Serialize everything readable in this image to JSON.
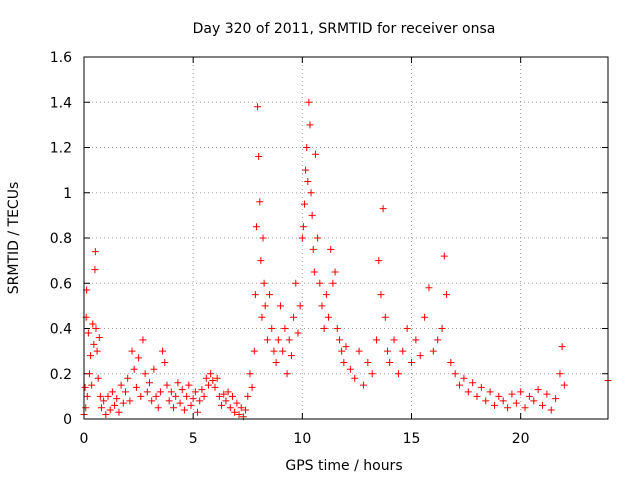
{
  "chart_data": {
    "type": "scatter",
    "title": "Day 320 of 2011, SRMTID for receiver onsa",
    "xlabel": "GPS time / hours",
    "ylabel": "SRMTID / TECUs",
    "xlim": [
      0,
      24
    ],
    "ylim": [
      0,
      1.6
    ],
    "xticks": [
      0,
      5,
      10,
      15,
      20
    ],
    "xtick_labels": [
      "0",
      "5",
      "10",
      "15",
      "20"
    ],
    "yticks": [
      0,
      0.2,
      0.4,
      0.6,
      0.8,
      1,
      1.2,
      1.4,
      1.6
    ],
    "ytick_labels": [
      "0",
      "0.2",
      "0.4",
      "0.6",
      "0.8",
      "1",
      "1.2",
      "1.4",
      "1.6"
    ],
    "grid": true,
    "marker": "plus",
    "color": "#ff0000",
    "series": [
      {
        "name": "SRMTID",
        "points": [
          [
            0.0,
            0.02
          ],
          [
            0.05,
            0.14
          ],
          [
            0.08,
            0.05
          ],
          [
            0.1,
            0.45
          ],
          [
            0.12,
            0.57
          ],
          [
            0.15,
            0.1
          ],
          [
            0.2,
            0.38
          ],
          [
            0.25,
            0.2
          ],
          [
            0.3,
            0.28
          ],
          [
            0.35,
            0.15
          ],
          [
            0.4,
            0.42
          ],
          [
            0.45,
            0.33
          ],
          [
            0.5,
            0.66
          ],
          [
            0.52,
            0.74
          ],
          [
            0.55,
            0.4
          ],
          [
            0.6,
            0.3
          ],
          [
            0.65,
            0.18
          ],
          [
            0.7,
            0.36
          ],
          [
            0.75,
            0.1
          ],
          [
            0.8,
            0.05
          ],
          [
            0.9,
            0.08
          ],
          [
            1.0,
            0.02
          ],
          [
            1.1,
            0.1
          ],
          [
            1.2,
            0.04
          ],
          [
            1.3,
            0.12
          ],
          [
            1.4,
            0.06
          ],
          [
            1.5,
            0.09
          ],
          [
            1.6,
            0.03
          ],
          [
            1.7,
            0.15
          ],
          [
            1.8,
            0.07
          ],
          [
            1.9,
            0.12
          ],
          [
            2.0,
            0.18
          ],
          [
            2.1,
            0.08
          ],
          [
            2.2,
            0.3
          ],
          [
            2.3,
            0.22
          ],
          [
            2.4,
            0.14
          ],
          [
            2.5,
            0.27
          ],
          [
            2.6,
            0.1
          ],
          [
            2.7,
            0.35
          ],
          [
            2.8,
            0.2
          ],
          [
            2.9,
            0.12
          ],
          [
            3.0,
            0.16
          ],
          [
            3.1,
            0.08
          ],
          [
            3.2,
            0.22
          ],
          [
            3.3,
            0.1
          ],
          [
            3.4,
            0.05
          ],
          [
            3.5,
            0.12
          ],
          [
            3.6,
            0.3
          ],
          [
            3.7,
            0.25
          ],
          [
            3.8,
            0.15
          ],
          [
            3.9,
            0.08
          ],
          [
            4.0,
            0.12
          ],
          [
            4.1,
            0.05
          ],
          [
            4.2,
            0.1
          ],
          [
            4.3,
            0.16
          ],
          [
            4.4,
            0.07
          ],
          [
            4.5,
            0.13
          ],
          [
            4.6,
            0.04
          ],
          [
            4.7,
            0.1
          ],
          [
            4.8,
            0.15
          ],
          [
            4.9,
            0.06
          ],
          [
            5.0,
            0.09
          ],
          [
            5.1,
            0.12
          ],
          [
            5.2,
            0.03
          ],
          [
            5.3,
            0.08
          ],
          [
            5.4,
            0.13
          ],
          [
            5.5,
            0.1
          ],
          [
            5.6,
            0.18
          ],
          [
            5.7,
            0.15
          ],
          [
            5.8,
            0.2
          ],
          [
            5.9,
            0.17
          ],
          [
            6.0,
            0.14
          ],
          [
            6.1,
            0.18
          ],
          [
            6.2,
            0.1
          ],
          [
            6.3,
            0.06
          ],
          [
            6.4,
            0.11
          ],
          [
            6.5,
            0.08
          ],
          [
            6.6,
            0.12
          ],
          [
            6.7,
            0.05
          ],
          [
            6.8,
            0.1
          ],
          [
            6.9,
            0.03
          ],
          [
            7.0,
            0.07
          ],
          [
            7.1,
            0.02
          ],
          [
            7.2,
            0.05
          ],
          [
            7.3,
            0.01
          ],
          [
            7.4,
            0.04
          ],
          [
            7.5,
            0.1
          ],
          [
            7.6,
            0.2
          ],
          [
            7.7,
            0.14
          ],
          [
            7.8,
            0.3
          ],
          [
            7.85,
            0.55
          ],
          [
            7.9,
            0.85
          ],
          [
            7.95,
            1.38
          ],
          [
            8.0,
            1.16
          ],
          [
            8.05,
            0.96
          ],
          [
            8.1,
            0.7
          ],
          [
            8.15,
            0.45
          ],
          [
            8.2,
            0.8
          ],
          [
            8.25,
            0.6
          ],
          [
            8.3,
            0.5
          ],
          [
            8.4,
            0.35
          ],
          [
            8.5,
            0.55
          ],
          [
            8.6,
            0.4
          ],
          [
            8.7,
            0.3
          ],
          [
            8.8,
            0.25
          ],
          [
            8.9,
            0.35
          ],
          [
            9.0,
            0.5
          ],
          [
            9.1,
            0.3
          ],
          [
            9.2,
            0.4
          ],
          [
            9.3,
            0.2
          ],
          [
            9.4,
            0.35
          ],
          [
            9.5,
            0.28
          ],
          [
            9.6,
            0.45
          ],
          [
            9.7,
            0.6
          ],
          [
            9.8,
            0.38
          ],
          [
            9.9,
            0.5
          ],
          [
            10.0,
            0.8
          ],
          [
            10.05,
            0.85
          ],
          [
            10.1,
            0.95
          ],
          [
            10.15,
            1.1
          ],
          [
            10.2,
            1.2
          ],
          [
            10.25,
            1.05
          ],
          [
            10.3,
            1.4
          ],
          [
            10.35,
            1.3
          ],
          [
            10.4,
            1.0
          ],
          [
            10.45,
            0.9
          ],
          [
            10.5,
            0.75
          ],
          [
            10.55,
            0.65
          ],
          [
            10.6,
            1.17
          ],
          [
            10.7,
            0.8
          ],
          [
            10.8,
            0.6
          ],
          [
            10.9,
            0.5
          ],
          [
            11.0,
            0.4
          ],
          [
            11.1,
            0.55
          ],
          [
            11.2,
            0.45
          ],
          [
            11.3,
            0.75
          ],
          [
            11.4,
            0.6
          ],
          [
            11.5,
            0.65
          ],
          [
            11.6,
            0.4
          ],
          [
            11.7,
            0.35
          ],
          [
            11.8,
            0.3
          ],
          [
            11.9,
            0.25
          ],
          [
            12.0,
            0.32
          ],
          [
            12.2,
            0.22
          ],
          [
            12.4,
            0.18
          ],
          [
            12.6,
            0.3
          ],
          [
            12.8,
            0.15
          ],
          [
            13.0,
            0.25
          ],
          [
            13.2,
            0.2
          ],
          [
            13.4,
            0.35
          ],
          [
            13.5,
            0.7
          ],
          [
            13.6,
            0.55
          ],
          [
            13.7,
            0.93
          ],
          [
            13.8,
            0.45
          ],
          [
            13.9,
            0.3
          ],
          [
            14.0,
            0.25
          ],
          [
            14.2,
            0.35
          ],
          [
            14.4,
            0.2
          ],
          [
            14.6,
            0.3
          ],
          [
            14.8,
            0.4
          ],
          [
            15.0,
            0.25
          ],
          [
            15.2,
            0.35
          ],
          [
            15.4,
            0.28
          ],
          [
            15.6,
            0.45
          ],
          [
            15.8,
            0.58
          ],
          [
            16.0,
            0.3
          ],
          [
            16.2,
            0.35
          ],
          [
            16.4,
            0.4
          ],
          [
            16.5,
            0.72
          ],
          [
            16.6,
            0.55
          ],
          [
            16.8,
            0.25
          ],
          [
            17.0,
            0.2
          ],
          [
            17.2,
            0.15
          ],
          [
            17.4,
            0.18
          ],
          [
            17.6,
            0.12
          ],
          [
            17.8,
            0.16
          ],
          [
            18.0,
            0.1
          ],
          [
            18.2,
            0.14
          ],
          [
            18.4,
            0.08
          ],
          [
            18.6,
            0.12
          ],
          [
            18.8,
            0.06
          ],
          [
            19.0,
            0.1
          ],
          [
            19.2,
            0.08
          ],
          [
            19.4,
            0.05
          ],
          [
            19.6,
            0.11
          ],
          [
            19.8,
            0.07
          ],
          [
            20.0,
            0.12
          ],
          [
            20.2,
            0.05
          ],
          [
            20.4,
            0.1
          ],
          [
            20.6,
            0.08
          ],
          [
            20.8,
            0.13
          ],
          [
            21.0,
            0.06
          ],
          [
            21.2,
            0.11
          ],
          [
            21.4,
            0.04
          ],
          [
            21.6,
            0.09
          ],
          [
            21.8,
            0.2
          ],
          [
            21.9,
            0.32
          ],
          [
            22.0,
            0.15
          ],
          [
            24.0,
            0.17
          ]
        ]
      }
    ]
  }
}
